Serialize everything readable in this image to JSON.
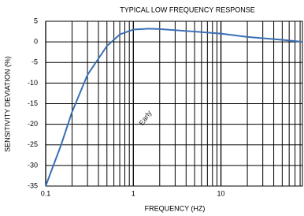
{
  "chart_data": {
    "type": "line",
    "title": "TYPICAL LOW FREQUENCY RESPONSE",
    "x_label": "FREQUENCY (HZ)",
    "y_label": "SENSITIVITY DEVIATION (%)",
    "watermark": "Early",
    "log_x": true,
    "grid": true,
    "minor_grid": true,
    "x": [
      0.1,
      0.15,
      0.2,
      0.3,
      0.5,
      0.7,
      1,
      1.5,
      2,
      5,
      10,
      20,
      50,
      85
    ],
    "series": [
      {
        "color": "#3a6fb5",
        "values": [
          -35,
          -25,
          -17,
          -8,
          -1,
          1.8,
          3,
          3.2,
          3.1,
          2.5,
          2,
          1.2,
          0.5,
          0
        ]
      }
    ],
    "xlim": [
      0.1,
      85
    ],
    "xticks": [
      0.1,
      1,
      10
    ],
    "ylim": [
      -35,
      5
    ],
    "yticks": [
      5,
      0,
      -5,
      -10,
      -15,
      -20,
      -25,
      -30,
      -35
    ]
  }
}
